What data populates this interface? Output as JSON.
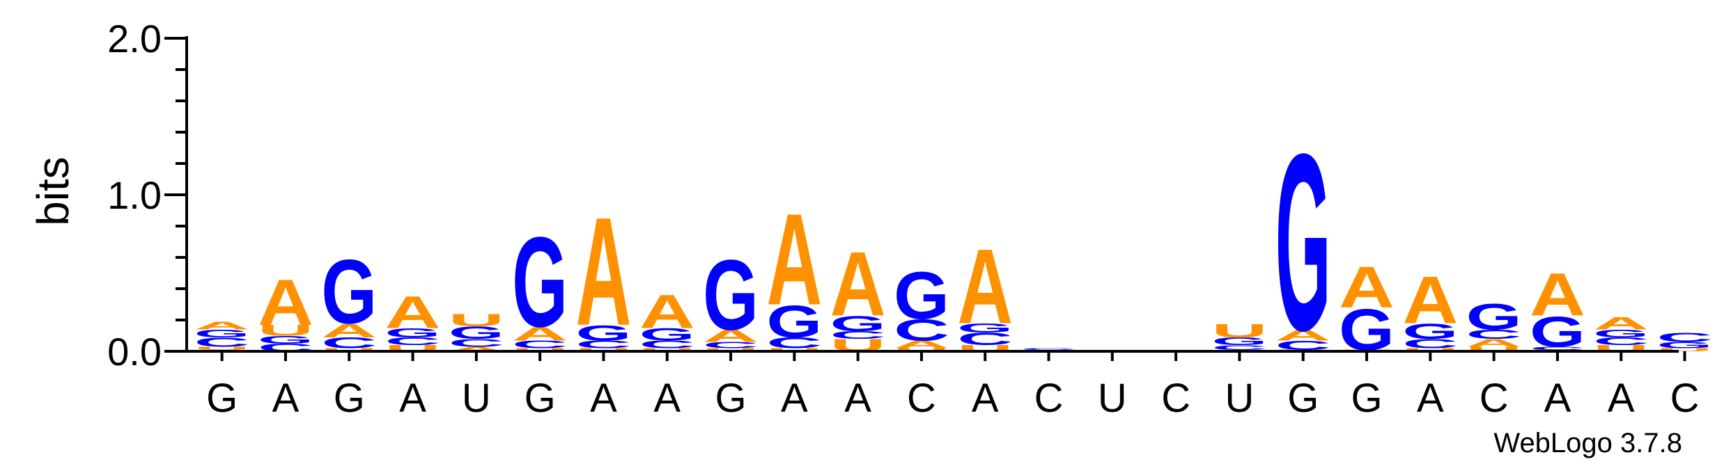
{
  "chart_data": {
    "type": "sequence-logo",
    "ylabel": "bits",
    "ylim": [
      0,
      2.0
    ],
    "yticks": [
      {
        "value": 0.0,
        "label": "0.0"
      },
      {
        "value": 1.0,
        "label": "1.0"
      },
      {
        "value": 2.0,
        "label": "2.0"
      }
    ],
    "colors": {
      "A": "#ff9100",
      "G": "#0000ff",
      "C": "#0000ff",
      "U": "#ff9100"
    },
    "positions": [
      {
        "label": "G",
        "stack": [
          [
            "A",
            0.01
          ],
          [
            "U",
            0.02
          ],
          [
            "C",
            0.06
          ],
          [
            "G",
            0.05
          ],
          [
            "A",
            0.05
          ]
        ]
      },
      {
        "label": "A",
        "stack": [
          [
            "C",
            0.05
          ],
          [
            "G",
            0.05
          ],
          [
            "U",
            0.07
          ],
          [
            "A",
            0.3
          ]
        ]
      },
      {
        "label": "G",
        "stack": [
          [
            "U",
            0.02
          ],
          [
            "C",
            0.07
          ],
          [
            "A",
            0.09
          ],
          [
            "G",
            0.42
          ]
        ]
      },
      {
        "label": "A",
        "stack": [
          [
            "U",
            0.04
          ],
          [
            "C",
            0.05
          ],
          [
            "G",
            0.06
          ],
          [
            "A",
            0.21
          ]
        ]
      },
      {
        "label": "U",
        "stack": [
          [
            "A",
            0.03
          ],
          [
            "C",
            0.05
          ],
          [
            "G",
            0.08
          ],
          [
            "U",
            0.08
          ]
        ]
      },
      {
        "label": "G",
        "stack": [
          [
            "U",
            0.02
          ],
          [
            "C",
            0.05
          ],
          [
            "A",
            0.09
          ],
          [
            "G",
            0.59
          ]
        ]
      },
      {
        "label": "A",
        "stack": [
          [
            "U",
            0.02
          ],
          [
            "C",
            0.05
          ],
          [
            "G",
            0.1
          ],
          [
            "A",
            0.71
          ]
        ]
      },
      {
        "label": "A",
        "stack": [
          [
            "U",
            0.02
          ],
          [
            "C",
            0.05
          ],
          [
            "G",
            0.08
          ],
          [
            "A",
            0.22
          ]
        ]
      },
      {
        "label": "G",
        "stack": [
          [
            "U",
            0.02
          ],
          [
            "C",
            0.04
          ],
          [
            "A",
            0.08
          ],
          [
            "G",
            0.46
          ]
        ]
      },
      {
        "label": "A",
        "stack": [
          [
            "U",
            0.02
          ],
          [
            "C",
            0.07
          ],
          [
            "G",
            0.21
          ],
          [
            "A",
            0.6
          ]
        ]
      },
      {
        "label": "A",
        "stack": [
          [
            "U",
            0.08
          ],
          [
            "C",
            0.05
          ],
          [
            "G",
            0.1
          ],
          [
            "A",
            0.42
          ]
        ]
      },
      {
        "label": "C",
        "stack": [
          [
            "U",
            0.02
          ],
          [
            "A",
            0.05
          ],
          [
            "C",
            0.14
          ],
          [
            "G",
            0.31
          ]
        ]
      },
      {
        "label": "A",
        "stack": [
          [
            "U",
            0.04
          ],
          [
            "C",
            0.08
          ],
          [
            "G",
            0.06
          ],
          [
            "A",
            0.49
          ]
        ]
      },
      {
        "label": "C",
        "stack": [
          [
            "G",
            0.01
          ],
          [
            "C",
            0.01
          ]
        ]
      },
      {
        "label": "U",
        "stack": []
      },
      {
        "label": "C",
        "stack": []
      },
      {
        "label": "U",
        "stack": [
          [
            "A",
            0.01
          ],
          [
            "C",
            0.03
          ],
          [
            "G",
            0.05
          ],
          [
            "U",
            0.09
          ]
        ]
      },
      {
        "label": "G",
        "stack": [
          [
            "U",
            0.01
          ],
          [
            "C",
            0.06
          ],
          [
            "A",
            0.07
          ],
          [
            "G",
            1.16
          ]
        ]
      },
      {
        "label": "G",
        "stack": [
          [
            "U",
            0.01
          ],
          [
            "G",
            0.27
          ],
          [
            "A",
            0.27
          ]
        ]
      },
      {
        "label": "A",
        "stack": [
          [
            "U",
            0.02
          ],
          [
            "C",
            0.06
          ],
          [
            "G",
            0.1
          ],
          [
            "A",
            0.31
          ]
        ]
      },
      {
        "label": "C",
        "stack": [
          [
            "U",
            0.03
          ],
          [
            "A",
            0.05
          ],
          [
            "C",
            0.06
          ],
          [
            "G",
            0.17
          ]
        ]
      },
      {
        "label": "A",
        "stack": [
          [
            "U",
            0.01
          ],
          [
            "C",
            0.02
          ],
          [
            "G",
            0.2
          ],
          [
            "A",
            0.28
          ]
        ]
      },
      {
        "label": "A",
        "stack": [
          [
            "U",
            0.04
          ],
          [
            "C",
            0.05
          ],
          [
            "G",
            0.05
          ],
          [
            "A",
            0.08
          ]
        ]
      },
      {
        "label": "C",
        "stack": [
          [
            "U",
            0.02
          ],
          [
            "G",
            0.04
          ],
          [
            "C",
            0.06
          ]
        ]
      }
    ]
  },
  "footer": "WebLogo 3.7.8"
}
